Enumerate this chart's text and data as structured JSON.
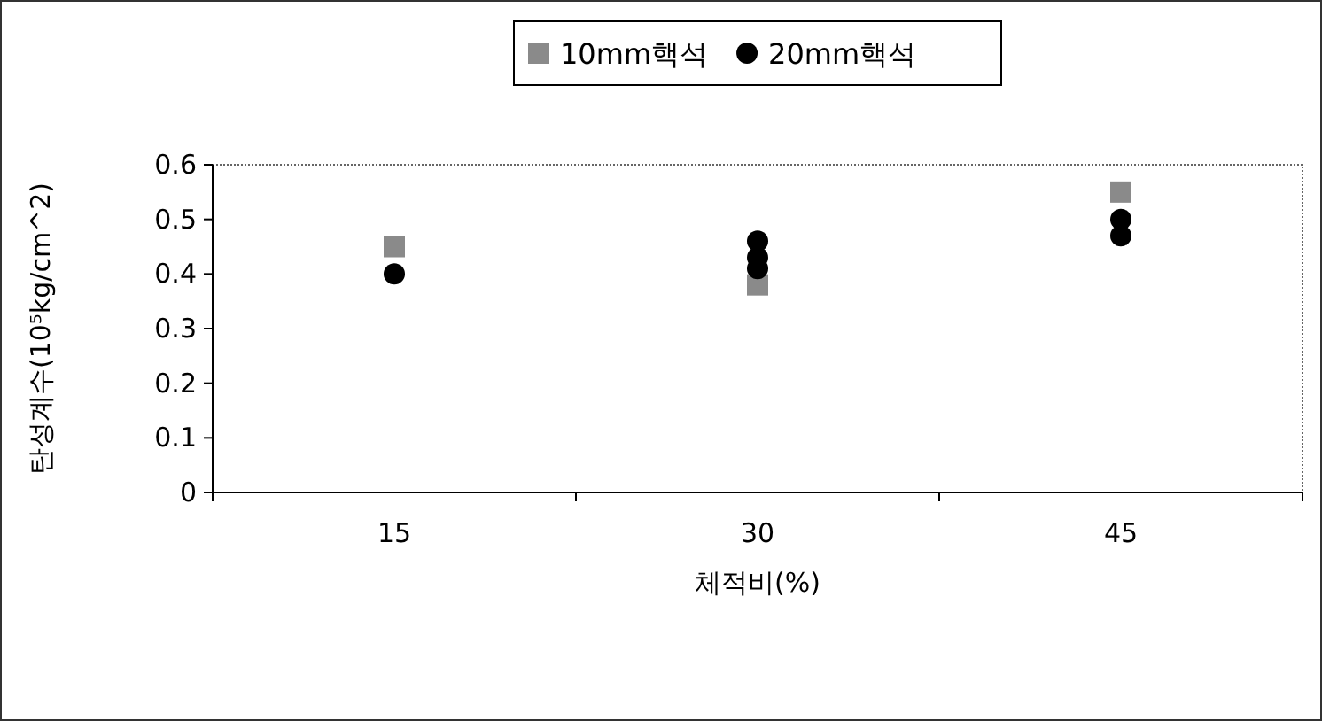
{
  "chart_data": {
    "type": "scatter",
    "xlabel": "체적비(%)",
    "ylabel": "탄성계수(10⁵kg/cm^2)",
    "categories": [
      "15",
      "30",
      "45"
    ],
    "ylim": [
      0,
      0.6
    ],
    "yticks": [
      0,
      0.1,
      0.2,
      0.3,
      0.4,
      0.5,
      0.6
    ],
    "grid": false,
    "legend": "top",
    "series": [
      {
        "name": "10mm핵석",
        "color": "#8a8a8a",
        "marker": "square",
        "x": [
          "15",
          "30",
          "45"
        ],
        "values": [
          0.45,
          0.38,
          0.55
        ]
      },
      {
        "name": "20mm핵석",
        "color": "#000000",
        "marker": "circle",
        "x": [
          "15",
          "30",
          "30",
          "30",
          "45",
          "45"
        ],
        "values": [
          0.4,
          0.41,
          0.43,
          0.46,
          0.5,
          0.47
        ]
      }
    ]
  }
}
